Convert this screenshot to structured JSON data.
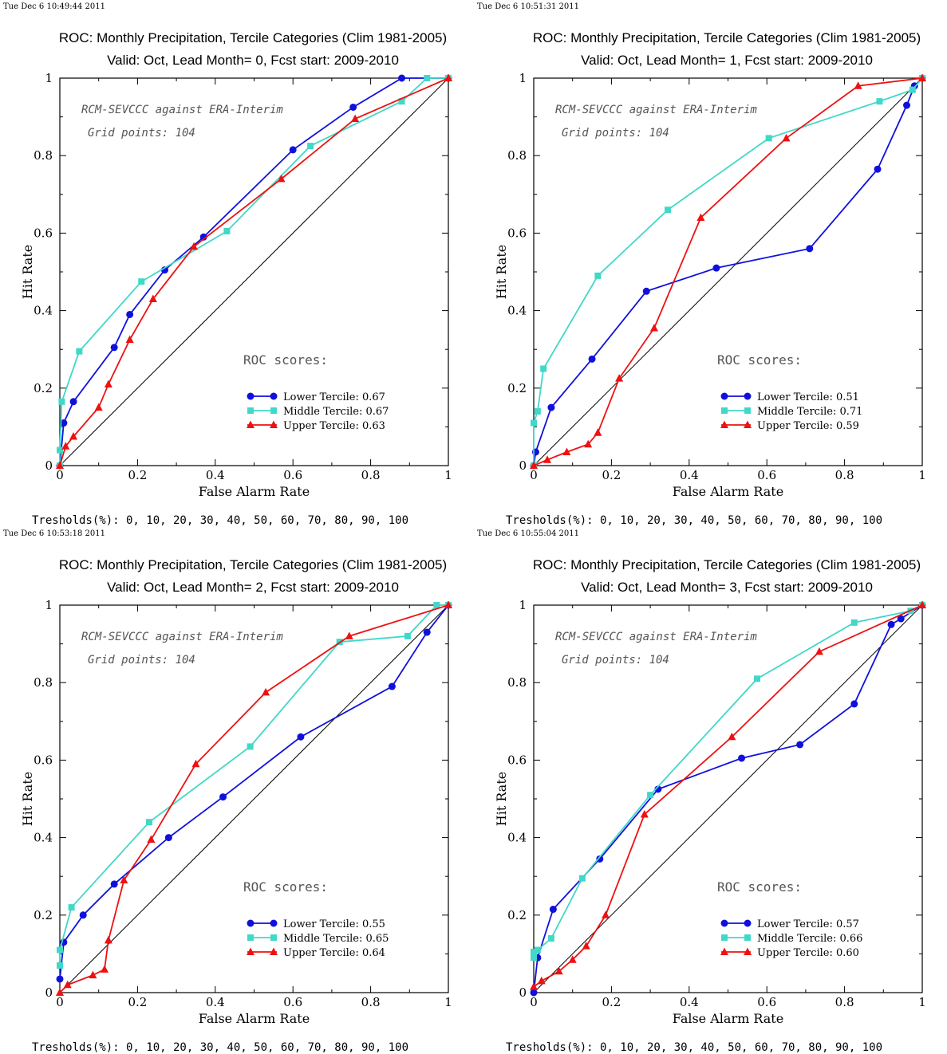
{
  "thresholds_label": "Tresholds(%):  0, 10, 20, 30, 40, 50, 60, 70, 80, 90, 100",
  "colors": {
    "lower": "#1010dd",
    "middle": "#40d8c8",
    "upper": "#ee1111",
    "diagonal": "#000000"
  },
  "chart_data": [
    {
      "type": "line",
      "timestamp": "Tue Dec  6 10:49:44 2011",
      "title": "ROC: Monthly Precipitation, Tercile Categories (Clim 1981-2005)",
      "subtitle": "Valid: Oct, Lead Month= 0, Fcst start: 2009-2010",
      "xlabel": "False Alarm Rate",
      "ylabel": "Hit Rate",
      "xlim": [
        0,
        1
      ],
      "ylim": [
        0,
        1
      ],
      "x_ticks": [
        "0",
        "0.2",
        "0.4",
        "0.6",
        "0.8",
        "1"
      ],
      "y_ticks": [
        "0",
        "0.2",
        "0.4",
        "0.6",
        "0.8",
        "1"
      ],
      "annotation_line1": "RCM-SEVCCC against ERA-Interim",
      "annotation_line2": "Grid points:  104",
      "scores_heading": "ROC scores:",
      "legend_placement": "lower-right",
      "series": [
        {
          "name": "Lower Tercile: 0.67",
          "color_key": "lower",
          "marker": "circle",
          "x": [
            0,
            0.01,
            0.035,
            0.14,
            0.18,
            0.27,
            0.37,
            0.6,
            0.755,
            0.88,
            1
          ],
          "y": [
            0,
            0.11,
            0.165,
            0.305,
            0.39,
            0.505,
            0.59,
            0.815,
            0.925,
            1,
            1
          ]
        },
        {
          "name": "Middle Tercile: 0.67",
          "color_key": "middle",
          "marker": "square",
          "x": [
            0,
            0,
            0.005,
            0.05,
            0.21,
            0.43,
            0.645,
            0.88,
            0.945,
            1
          ],
          "y": [
            0,
            0.04,
            0.165,
            0.295,
            0.475,
            0.605,
            0.825,
            0.94,
            1,
            1
          ]
        },
        {
          "name": "Upper Tercile: 0.63",
          "color_key": "upper",
          "marker": "triangle",
          "x": [
            0,
            0.015,
            0.035,
            0.1,
            0.125,
            0.18,
            0.24,
            0.345,
            0.57,
            0.76,
            1
          ],
          "y": [
            0,
            0.05,
            0.075,
            0.15,
            0.21,
            0.325,
            0.43,
            0.565,
            0.74,
            0.895,
            1
          ]
        }
      ],
      "thresholds": "Tresholds(%):  0, 10, 20, 30, 40, 50, 60, 70, 80, 90, 100"
    },
    {
      "type": "line",
      "timestamp": "Tue Dec  6 10:51:31 2011",
      "title": "ROC: Monthly Precipitation, Tercile Categories (Clim 1981-2005)",
      "subtitle": "Valid: Oct, Lead Month= 1, Fcst start: 2009-2010",
      "xlabel": "False Alarm Rate",
      "ylabel": "Hit Rate",
      "xlim": [
        0,
        1
      ],
      "ylim": [
        0,
        1
      ],
      "x_ticks": [
        "0",
        "0.2",
        "0.4",
        "0.6",
        "0.8",
        "1"
      ],
      "y_ticks": [
        "0",
        "0.2",
        "0.4",
        "0.6",
        "0.8",
        "1"
      ],
      "annotation_line1": "RCM-SEVCCC against ERA-Interim",
      "annotation_line2": "Grid points:  104",
      "scores_heading": "ROC scores:",
      "legend_placement": "lower-right",
      "series": [
        {
          "name": "Lower Tercile: 0.51",
          "color_key": "lower",
          "marker": "circle",
          "x": [
            0,
            0.005,
            0.045,
            0.15,
            0.29,
            0.47,
            0.71,
            0.885,
            0.96,
            0.98,
            1
          ],
          "y": [
            0,
            0.035,
            0.15,
            0.275,
            0.45,
            0.51,
            0.56,
            0.765,
            0.93,
            0.98,
            1
          ]
        },
        {
          "name": "Middle Tercile: 0.71",
          "color_key": "middle",
          "marker": "square",
          "x": [
            0,
            0,
            0.01,
            0.025,
            0.165,
            0.345,
            0.605,
            0.89,
            0.975,
            1
          ],
          "y": [
            0,
            0.11,
            0.14,
            0.25,
            0.49,
            0.66,
            0.845,
            0.94,
            0.97,
            1
          ]
        },
        {
          "name": "Upper Tercile: 0.59",
          "color_key": "upper",
          "marker": "triangle",
          "x": [
            0,
            0.035,
            0.085,
            0.14,
            0.165,
            0.22,
            0.31,
            0.43,
            0.65,
            0.835,
            1
          ],
          "y": [
            0,
            0.015,
            0.035,
            0.055,
            0.085,
            0.225,
            0.355,
            0.64,
            0.845,
            0.98,
            1
          ]
        }
      ],
      "thresholds": "Tresholds(%):  0, 10, 20, 30, 40, 50, 60, 70, 80, 90, 100"
    },
    {
      "type": "line",
      "timestamp": "Tue Dec  6 10:53:18 2011",
      "title": "ROC: Monthly Precipitation, Tercile Categories (Clim 1981-2005)",
      "subtitle": "Valid: Oct, Lead Month= 2, Fcst start: 2009-2010",
      "xlabel": "False Alarm Rate",
      "ylabel": "Hit Rate",
      "xlim": [
        0,
        1
      ],
      "ylim": [
        0,
        1
      ],
      "x_ticks": [
        "0",
        "0.2",
        "0.4",
        "0.6",
        "0.8",
        "1"
      ],
      "y_ticks": [
        "0",
        "0.2",
        "0.4",
        "0.6",
        "0.8",
        "1"
      ],
      "annotation_line1": "RCM-SEVCCC against ERA-Interim",
      "annotation_line2": "Grid points:  104",
      "scores_heading": "ROC scores:",
      "legend_placement": "lower-right",
      "series": [
        {
          "name": "Lower Tercile: 0.55",
          "color_key": "lower",
          "marker": "circle",
          "x": [
            0,
            0.01,
            0.06,
            0.14,
            0.28,
            0.42,
            0.62,
            0.855,
            0.945,
            1
          ],
          "y": [
            0.035,
            0.13,
            0.2,
            0.28,
            0.4,
            0.505,
            0.66,
            0.79,
            0.93,
            1
          ]
        },
        {
          "name": "Middle Tercile: 0.65",
          "color_key": "middle",
          "marker": "square",
          "x": [
            0,
            0,
            0.03,
            0.23,
            0.49,
            0.72,
            0.895,
            0.97,
            1
          ],
          "y": [
            0.07,
            0.11,
            0.22,
            0.44,
            0.635,
            0.905,
            0.92,
            1,
            1
          ]
        },
        {
          "name": "Upper Tercile: 0.64",
          "color_key": "upper",
          "marker": "triangle",
          "x": [
            0,
            0.02,
            0.085,
            0.115,
            0.125,
            0.165,
            0.235,
            0.35,
            0.53,
            0.745,
            1
          ],
          "y": [
            0,
            0.02,
            0.045,
            0.06,
            0.135,
            0.29,
            0.395,
            0.59,
            0.775,
            0.92,
            1
          ]
        }
      ],
      "thresholds": "Tresholds(%):  0, 10, 20, 30, 40, 50, 60, 70, 80, 90, 100"
    },
    {
      "type": "line",
      "timestamp": "Tue Dec  6 10:55:04 2011",
      "title": "ROC: Monthly Precipitation, Tercile Categories (Clim 1981-2005)",
      "subtitle": "Valid: Oct, Lead Month= 3, Fcst start: 2009-2010",
      "xlabel": "False Alarm Rate",
      "ylabel": "Hit Rate",
      "xlim": [
        0,
        1
      ],
      "ylim": [
        0,
        1
      ],
      "x_ticks": [
        "0",
        "0.2",
        "0.4",
        "0.6",
        "0.8",
        "1"
      ],
      "y_ticks": [
        "0",
        "0.2",
        "0.4",
        "0.6",
        "0.8",
        "1"
      ],
      "annotation_line1": "RCM-SEVCCC against ERA-Interim",
      "annotation_line2": "Grid points:  104",
      "scores_heading": "ROC scores:",
      "legend_placement": "lower-right",
      "series": [
        {
          "name": "Lower Tercile: 0.57",
          "color_key": "lower",
          "marker": "circle",
          "x": [
            0,
            0.01,
            0.05,
            0.17,
            0.32,
            0.535,
            0.685,
            0.825,
            0.92,
            0.945,
            1
          ],
          "y": [
            0,
            0.09,
            0.215,
            0.345,
            0.525,
            0.605,
            0.64,
            0.745,
            0.95,
            0.965,
            1
          ]
        },
        {
          "name": "Middle Tercile: 0.66",
          "color_key": "middle",
          "marker": "square",
          "x": [
            0,
            0,
            0.01,
            0.045,
            0.125,
            0.3,
            0.575,
            0.825,
            0.97,
            1
          ],
          "y": [
            0.09,
            0.105,
            0.11,
            0.14,
            0.295,
            0.51,
            0.81,
            0.955,
            0.985,
            1
          ]
        },
        {
          "name": "Upper Tercile: 0.60",
          "color_key": "upper",
          "marker": "triangle",
          "x": [
            0,
            0.02,
            0.065,
            0.1,
            0.135,
            0.185,
            0.285,
            0.51,
            0.735,
            1
          ],
          "y": [
            0.015,
            0.03,
            0.055,
            0.085,
            0.12,
            0.2,
            0.46,
            0.66,
            0.88,
            1
          ]
        }
      ],
      "thresholds": "Tresholds(%):  0, 10, 20, 30, 40, 50, 60, 70, 80, 90, 100"
    }
  ]
}
